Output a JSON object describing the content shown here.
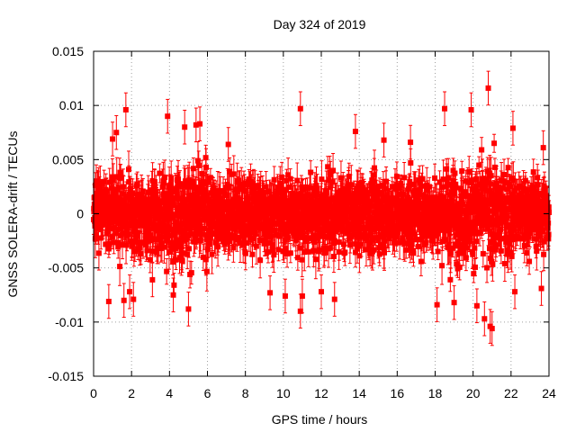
{
  "chart_data": {
    "type": "scatter",
    "title": "Day 324 of 2019",
    "xlabel": "GPS time / hours",
    "ylabel": "GNSS SOLERA-drift / TECUs",
    "xlim": [
      0,
      24
    ],
    "ylim": [
      -0.015,
      0.015
    ],
    "x_ticks": [
      0,
      2,
      4,
      6,
      8,
      10,
      12,
      14,
      16,
      18,
      20,
      22,
      24
    ],
    "x_tick_labels": [
      "0",
      "2",
      "4",
      "6",
      "8",
      "10",
      "12",
      "14",
      "16",
      "18",
      "20",
      "22",
      "24"
    ],
    "y_ticks": [
      -0.015,
      -0.01,
      -0.005,
      0,
      0.005,
      0.01,
      0.015
    ],
    "y_tick_labels": [
      "-0.015",
      "-0.01",
      "-0.005",
      "0",
      "0.005",
      "0.01",
      "0.015"
    ],
    "grid": true,
    "legend": "none",
    "marker": "square",
    "error_bars": true,
    "series": [
      {
        "color": "#ff0000",
        "sample_interval_hours": 0.01,
        "typical_spread": 0.0022,
        "typical_error": 0.0012,
        "outliers": [
          {
            "x": 0.8,
            "y": -0.0081
          },
          {
            "x": 1.0,
            "y": 0.0069
          },
          {
            "x": 1.2,
            "y": 0.0075
          },
          {
            "x": 1.6,
            "y": -0.008
          },
          {
            "x": 1.7,
            "y": 0.0096
          },
          {
            "x": 1.9,
            "y": -0.0072
          },
          {
            "x": 2.1,
            "y": -0.0079
          },
          {
            "x": 3.1,
            "y": -0.0061
          },
          {
            "x": 3.9,
            "y": 0.009
          },
          {
            "x": 4.2,
            "y": -0.0075
          },
          {
            "x": 4.8,
            "y": 0.008
          },
          {
            "x": 5.0,
            "y": -0.0088
          },
          {
            "x": 5.4,
            "y": 0.0082
          },
          {
            "x": 5.6,
            "y": 0.0083
          },
          {
            "x": 7.1,
            "y": 0.0064
          },
          {
            "x": 9.3,
            "y": -0.0073
          },
          {
            "x": 10.1,
            "y": -0.0076
          },
          {
            "x": 10.9,
            "y": 0.0097
          },
          {
            "x": 10.9,
            "y": -0.009
          },
          {
            "x": 11.0,
            "y": -0.0076
          },
          {
            "x": 12.0,
            "y": -0.0072
          },
          {
            "x": 12.7,
            "y": -0.0079
          },
          {
            "x": 13.8,
            "y": 0.0076
          },
          {
            "x": 15.3,
            "y": 0.0068
          },
          {
            "x": 16.7,
            "y": 0.0066
          },
          {
            "x": 18.1,
            "y": -0.0084
          },
          {
            "x": 18.5,
            "y": 0.0097
          },
          {
            "x": 19.0,
            "y": -0.0082
          },
          {
            "x": 19.9,
            "y": 0.0096
          },
          {
            "x": 20.2,
            "y": -0.0085
          },
          {
            "x": 20.6,
            "y": -0.0097
          },
          {
            "x": 20.8,
            "y": 0.0116
          },
          {
            "x": 20.9,
            "y": -0.0104
          },
          {
            "x": 21.0,
            "y": -0.0106
          },
          {
            "x": 22.1,
            "y": 0.0079
          },
          {
            "x": 22.2,
            "y": -0.0072
          },
          {
            "x": 23.6,
            "y": -0.0069
          },
          {
            "x": 23.7,
            "y": 0.0061
          }
        ]
      }
    ]
  }
}
